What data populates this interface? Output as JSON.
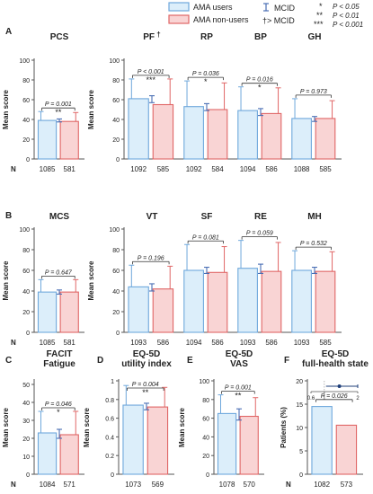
{
  "legend": {
    "ama_users": "AMA users",
    "ama_nonusers": "AMA non-users",
    "mcid": "MCID",
    "mcid_gt": "†> MCID",
    "sig1": "P < 0.05",
    "sig2": "P < 0.01",
    "sig3": "P < 0.001",
    "star1": "*",
    "star2": "**",
    "star3": "***"
  },
  "colors": {
    "users_fill": "#dceefa",
    "users_stroke": "#6fa8dc",
    "nonusers_fill": "#f9d4d4",
    "nonusers_stroke": "#e06666",
    "mcid": "#4a6fb5",
    "axis": "#555555"
  },
  "labels": {
    "ylabel": "Mean score",
    "ylabel_pct": "Patients (%)",
    "n_label": "N"
  },
  "chart_data": [
    {
      "panel": "A",
      "title": "PCS",
      "type": "bar",
      "ylim": [
        0,
        100
      ],
      "yticks": [
        0,
        20,
        40,
        60,
        80,
        100
      ],
      "values": [
        39,
        38
      ],
      "err_up": [
        9,
        9
      ],
      "mcid": [
        37.5,
        40.5
      ],
      "p": "P = 0.001",
      "sig": "**",
      "n": [
        1085,
        581
      ]
    },
    {
      "panel": "",
      "title": "PF",
      "title_suffix": "†",
      "type": "bar",
      "ylim": [
        0,
        100
      ],
      "yticks": [
        0,
        20,
        40,
        60,
        80,
        100
      ],
      "values": [
        61,
        55
      ],
      "err_up": [
        20,
        26
      ],
      "mcid": [
        57,
        64
      ],
      "p": "P < 0.001",
      "sig": "***",
      "n": [
        1092,
        585
      ]
    },
    {
      "panel": "",
      "title": "RP",
      "type": "bar",
      "ylim": [
        0,
        100
      ],
      "yticks": [],
      "values": [
        53,
        50
      ],
      "err_up": [
        26,
        27
      ],
      "mcid": [
        49,
        56
      ],
      "p": "P = 0.036",
      "sig": "*",
      "n": [
        1092,
        584
      ]
    },
    {
      "panel": "",
      "title": "BP",
      "type": "bar",
      "ylim": [
        0,
        100
      ],
      "yticks": [],
      "values": [
        49,
        46
      ],
      "err_up": [
        24,
        26
      ],
      "mcid": [
        44,
        51
      ],
      "p": "P = 0.016",
      "sig": "*",
      "n": [
        1094,
        586
      ]
    },
    {
      "panel": "",
      "title": "GH",
      "type": "bar",
      "ylim": [
        0,
        100
      ],
      "yticks": [],
      "values": [
        41,
        41
      ],
      "err_up": [
        20,
        18
      ],
      "mcid": [
        38,
        43
      ],
      "p": "P = 0.973",
      "sig": "",
      "n": [
        1088,
        585
      ]
    },
    {
      "panel": "B",
      "title": "MCS",
      "type": "bar",
      "ylim": [
        0,
        100
      ],
      "yticks": [
        0,
        20,
        40,
        60,
        80,
        100
      ],
      "values": [
        39,
        39
      ],
      "err_up": [
        12,
        12
      ],
      "mcid": [
        37,
        41
      ],
      "p": "P = 0.647",
      "sig": "",
      "n": [
        1085,
        581
      ]
    },
    {
      "panel": "",
      "title": "VT",
      "type": "bar",
      "ylim": [
        0,
        100
      ],
      "yticks": [
        0,
        20,
        40,
        60,
        80,
        100
      ],
      "values": [
        44,
        42
      ],
      "err_up": [
        21,
        22
      ],
      "mcid": [
        40,
        47
      ],
      "p": "P = 0.196",
      "sig": "",
      "n": [
        1093,
        586
      ]
    },
    {
      "panel": "",
      "title": "SF",
      "type": "bar",
      "ylim": [
        0,
        100
      ],
      "yticks": [],
      "values": [
        60,
        58
      ],
      "err_up": [
        25,
        25
      ],
      "mcid": [
        57,
        63
      ],
      "p": "P = 0.081",
      "sig": "",
      "n": [
        1094,
        586
      ]
    },
    {
      "panel": "",
      "title": "RE",
      "type": "bar",
      "ylim": [
        0,
        100
      ],
      "yticks": [],
      "values": [
        62,
        59
      ],
      "err_up": [
        27,
        28
      ],
      "mcid": [
        57,
        66
      ],
      "p": "P = 0.059",
      "sig": "",
      "n": [
        1093,
        586
      ]
    },
    {
      "panel": "",
      "title": "MH",
      "type": "bar",
      "ylim": [
        0,
        100
      ],
      "yticks": [],
      "values": [
        60,
        59
      ],
      "err_up": [
        19,
        19
      ],
      "mcid": [
        57,
        63
      ],
      "p": "P = 0.532",
      "sig": "",
      "n": [
        1093,
        585
      ]
    },
    {
      "panel": "C",
      "title": "FACIT Fatigue",
      "title_lines": [
        "FACIT",
        "Fatigue"
      ],
      "type": "bar",
      "ylim": [
        0,
        52
      ],
      "yticks": [
        0,
        10,
        20,
        30,
        40,
        50
      ],
      "values": [
        23,
        22
      ],
      "err_up": [
        12,
        13
      ],
      "mcid": [
        20,
        25
      ],
      "p": "P = 0.046",
      "sig": "*",
      "n": [
        1084,
        571
      ]
    },
    {
      "panel": "D",
      "title": "EQ-5D utility index",
      "title_lines": [
        "EQ-5D",
        "utility index"
      ],
      "type": "bar",
      "ylim": [
        0,
        1.0
      ],
      "yticks": [
        0,
        0.2,
        0.4,
        0.6,
        0.8,
        1.0
      ],
      "values": [
        0.74,
        0.72
      ],
      "err_up": [
        0.21,
        0.21
      ],
      "mcid": [
        0.69,
        0.76
      ],
      "p": "P = 0.004",
      "sig": "**",
      "n": [
        1073,
        569
      ]
    },
    {
      "panel": "E",
      "title": "EQ-5D VAS",
      "title_lines": [
        "EQ-5D",
        "VAS"
      ],
      "type": "bar",
      "ylim": [
        0,
        100
      ],
      "yticks": [
        0,
        20,
        40,
        60,
        80,
        100
      ],
      "values": [
        65,
        62
      ],
      "err_up": [
        20,
        20
      ],
      "mcid": [
        58,
        70
      ],
      "p": "P = 0.001",
      "sig": "**",
      "n": [
        1078,
        570
      ]
    },
    {
      "panel": "F",
      "title": "EQ-5D full-health state",
      "title_lines": [
        "EQ-5D",
        "full-health state"
      ],
      "type": "bar",
      "ylim": [
        0,
        20
      ],
      "yticks": [
        0,
        5,
        10,
        15,
        20
      ],
      "values": [
        14.5,
        10.5
      ],
      "err_up": [
        0,
        0
      ],
      "mcid": null,
      "p": "P = 0.026",
      "sig": "",
      "n": [
        1082,
        573
      ],
      "inset": {
        "ticks": [
          0.6,
          1.0,
          2.0
        ],
        "or": 1.45,
        "ci": [
          1.05,
          2.0
        ]
      }
    }
  ]
}
